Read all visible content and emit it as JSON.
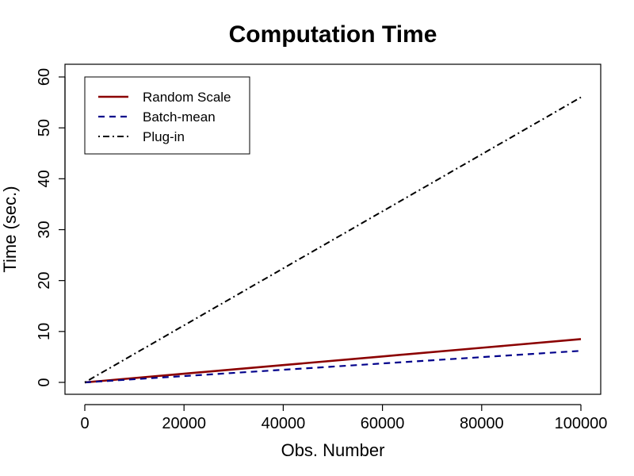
{
  "chart_data": {
    "type": "line",
    "title": "Computation Time",
    "xlabel": "Obs. Number",
    "ylabel": "Time (sec.)",
    "xlim": [
      0,
      100000
    ],
    "ylim": [
      0,
      60
    ],
    "xticks": [
      0,
      20000,
      40000,
      60000,
      80000,
      100000
    ],
    "yticks": [
      0,
      10,
      20,
      30,
      40,
      50,
      60
    ],
    "grid": false,
    "legend_position": "top-left",
    "series": [
      {
        "name": "Random Scale",
        "color": "#8b0000",
        "dash": "solid",
        "x": [
          0,
          20000,
          40000,
          60000,
          80000,
          100000
        ],
        "y": [
          0,
          1.7,
          3.4,
          5.1,
          6.8,
          8.5
        ]
      },
      {
        "name": "Batch-mean",
        "color": "#00008b",
        "dash": "dashed",
        "x": [
          0,
          20000,
          40000,
          60000,
          80000,
          100000
        ],
        "y": [
          0,
          1.24,
          2.48,
          3.72,
          4.96,
          6.2
        ]
      },
      {
        "name": "Plug-in",
        "color": "#000000",
        "dash": "dotdash",
        "x": [
          0,
          20000,
          40000,
          60000,
          80000,
          100000
        ],
        "y": [
          0,
          11.2,
          22.4,
          33.6,
          44.8,
          56
        ]
      }
    ]
  }
}
